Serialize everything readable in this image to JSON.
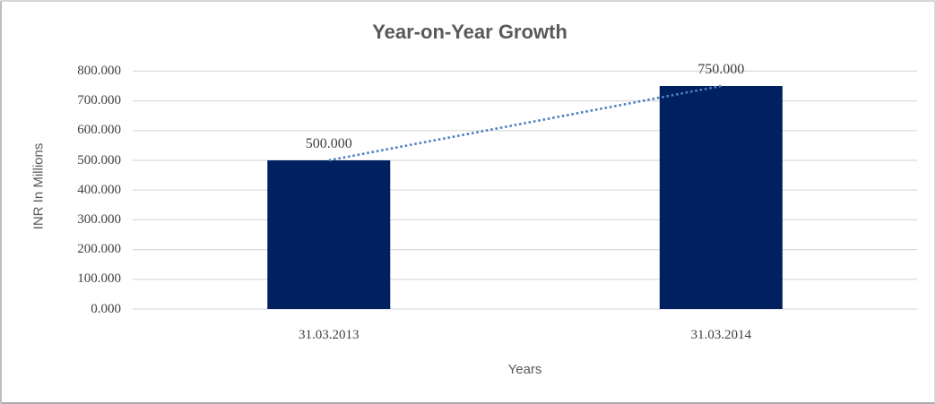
{
  "chart_data": {
    "type": "bar",
    "title": "Year-on-Year Growth",
    "categories": [
      "31.03.2013",
      "31.03.2014"
    ],
    "values": [
      500,
      750
    ],
    "data_labels": [
      "500.000",
      "750.000"
    ],
    "xlabel": "Years",
    "ylabel": "INR In Millions",
    "ylim": [
      0,
      800
    ],
    "ytick_step": 100,
    "ytick_labels": [
      "0.000",
      "100.000",
      "200.000",
      "300.000",
      "400.000",
      "500.000",
      "600.000",
      "700.000",
      "800.000"
    ],
    "grid": true,
    "legend": "none",
    "trendline": {
      "style": "dotted",
      "from_value": 500,
      "to_value": 750,
      "color": "#4F81BD"
    },
    "colors": {
      "bar": "#002060",
      "trendline": "#4F81BD",
      "gridline": "#D9D9D9",
      "title": "#595959",
      "axis_title": "#595959",
      "tick_label": "#404040",
      "data_label": "#404040",
      "background": "#FFFFFF",
      "border": "#C9C9C9"
    }
  }
}
